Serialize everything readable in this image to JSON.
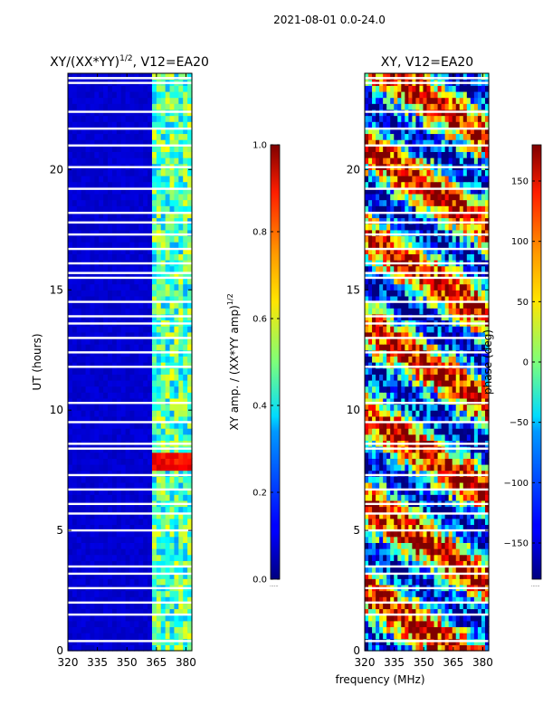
{
  "figure": {
    "suptitle": "2021-08-01 0.0-24.0",
    "common_xlabel": "frequency (MHz)"
  },
  "chart_data": [
    {
      "type": "heatmap",
      "id": "amp",
      "title": "XY/(XX*YY)",
      "title_exponent": "1/2",
      "title_suffix": ", V12=EA20",
      "xlabel": "",
      "ylabel": "UT (hours)",
      "xlim": [
        320,
        383
      ],
      "ylim": [
        0,
        24
      ],
      "xticks": [
        320,
        335,
        350,
        365,
        380
      ],
      "xtick_labels": [
        "320",
        "335",
        "350",
        "365",
        "380"
      ],
      "yticks": [
        0,
        5,
        10,
        15,
        20
      ],
      "ytick_labels": [
        "0",
        "5",
        "10",
        "15",
        "20"
      ],
      "colormap": "jet",
      "clim": [
        0.0,
        1.0
      ],
      "colorbar_ticks": [
        0.0,
        0.2,
        0.4,
        0.6,
        0.8,
        1.0
      ],
      "colorbar_tick_labels": [
        "0.0",
        "0.2",
        "0.4",
        "0.6",
        "0.8",
        "1.0"
      ],
      "colorbar_label": "XY amp. / (XX*YY amp)",
      "colorbar_label_exponent": "1/2",
      "colorbar_offset_text": "......",
      "channel_boundaries_mhz": [
        320,
        362,
        383
      ],
      "band_values": {
        "low_band": 0.06,
        "high_band_mean": 0.45
      },
      "flare_hours": [
        7.6,
        8.2
      ],
      "flare_value": 0.92,
      "flagged_hours": [
        0.4,
        1.5,
        2.0,
        2.6,
        3.2,
        3.5,
        5.0,
        5.7,
        6.1,
        6.7,
        7.3,
        8.4,
        8.6,
        9.5,
        10.3,
        11.8,
        12.4,
        13.0,
        13.6,
        13.9,
        14.5,
        15.5,
        15.7,
        16.1,
        16.7,
        17.3,
        17.8,
        18.2,
        19.2,
        20.1,
        21.0,
        21.7,
        22.4,
        23.6,
        23.8
      ]
    },
    {
      "type": "heatmap",
      "id": "phase",
      "title": "XY, V12=EA20",
      "xlabel": "frequency (MHz)",
      "ylabel": "",
      "xlim": [
        320,
        383
      ],
      "ylim": [
        0,
        24
      ],
      "xticks": [
        320,
        335,
        350,
        365,
        380
      ],
      "xtick_labels": [
        "320",
        "335",
        "350",
        "365",
        "380"
      ],
      "yticks": [
        0,
        5,
        10,
        15,
        20
      ],
      "ytick_labels": [
        "0",
        "5",
        "10",
        "15",
        "20"
      ],
      "colormap": "jet",
      "clim": [
        -180,
        180
      ],
      "colorbar_ticks": [
        150,
        100,
        50,
        0,
        -50,
        -100,
        -150
      ],
      "colorbar_tick_labels": [
        "150",
        "100",
        "50",
        "0",
        "−50",
        "−100",
        "−150"
      ],
      "colorbar_label": "phase (deg)",
      "colorbar_offset_text": "......",
      "flagged_hours": [
        0.4,
        1.5,
        2.0,
        2.6,
        3.2,
        3.5,
        5.0,
        5.7,
        6.1,
        6.7,
        7.3,
        8.4,
        8.6,
        9.5,
        10.3,
        11.8,
        12.4,
        13.0,
        13.6,
        13.9,
        14.5,
        15.5,
        15.7,
        16.1,
        16.7,
        17.3,
        17.8,
        18.2,
        19.2,
        20.1,
        21.0,
        21.7,
        22.4,
        23.6,
        23.8
      ]
    }
  ]
}
